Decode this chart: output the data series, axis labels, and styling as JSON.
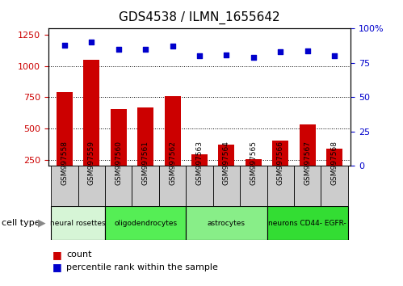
{
  "title": "GDS4538 / ILMN_1655642",
  "samples": [
    "GSM997558",
    "GSM997559",
    "GSM997560",
    "GSM997561",
    "GSM997562",
    "GSM997563",
    "GSM997564",
    "GSM997565",
    "GSM997566",
    "GSM997567",
    "GSM997568"
  ],
  "counts": [
    790,
    1050,
    655,
    670,
    760,
    295,
    370,
    255,
    400,
    530,
    340
  ],
  "percentile": [
    88,
    90,
    85,
    85,
    87,
    80,
    81,
    79,
    83,
    84,
    80
  ],
  "cell_types": [
    {
      "label": "neural rosettes",
      "span": [
        0,
        2
      ],
      "color": "#d6f5d6"
    },
    {
      "label": "oligodendrocytes",
      "span": [
        2,
        5
      ],
      "color": "#55ee55"
    },
    {
      "label": "astrocytes",
      "span": [
        5,
        8
      ],
      "color": "#88ee88"
    },
    {
      "label": "neurons CD44- EGFR-",
      "span": [
        8,
        11
      ],
      "color": "#33dd33"
    }
  ],
  "ylim_left": [
    200,
    1300
  ],
  "ylim_right": [
    0,
    100
  ],
  "yticks_left": [
    250,
    500,
    750,
    1000,
    1250
  ],
  "yticks_right": [
    0,
    25,
    50,
    75,
    100
  ],
  "bar_color": "#cc0000",
  "dot_color": "#0000cc",
  "grid_color": "#000000",
  "sample_box_color": "#cccccc",
  "title_fontsize": 11,
  "tick_fontsize": 8,
  "bar_width": 0.6
}
